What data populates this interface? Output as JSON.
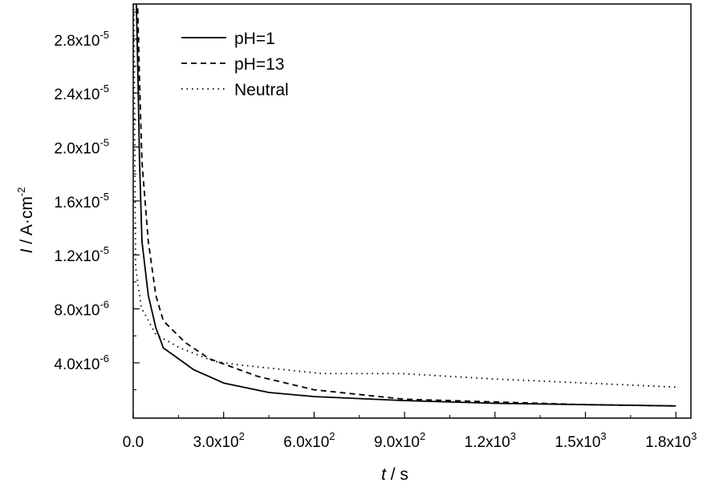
{
  "chart_data": {
    "type": "line",
    "title": "",
    "xlabel_italic": "t",
    "xlabel_rest": " / s",
    "ylabel_italic": "I",
    "ylabel_rest": " / A·cm",
    "ylabel_exp": "-2",
    "xlim": [
      0,
      1850
    ],
    "ylim": [
      -1e-07,
      3.06e-05
    ],
    "grid": false,
    "legend_position": "top-left",
    "x_ticks": [
      {
        "value": 0,
        "mant": "0.0",
        "exp": ""
      },
      {
        "value": 300,
        "mant": "3.0x10",
        "exp": "2"
      },
      {
        "value": 600,
        "mant": "6.0x10",
        "exp": "2"
      },
      {
        "value": 900,
        "mant": "9.0x10",
        "exp": "2"
      },
      {
        "value": 1200,
        "mant": "1.2x10",
        "exp": "3"
      },
      {
        "value": 1500,
        "mant": "1.5x10",
        "exp": "3"
      },
      {
        "value": 1800,
        "mant": "1.8x10",
        "exp": "3"
      }
    ],
    "y_ticks": [
      {
        "value": 4e-06,
        "mant": "4.0x10",
        "exp": "-6"
      },
      {
        "value": 8e-06,
        "mant": "8.0x10",
        "exp": "-6"
      },
      {
        "value": 1.2e-05,
        "mant": "1.2x10",
        "exp": "-5"
      },
      {
        "value": 1.6e-05,
        "mant": "1.6x10",
        "exp": "-5"
      },
      {
        "value": 2e-05,
        "mant": "2.0x10",
        "exp": "-5"
      },
      {
        "value": 2.4e-05,
        "mant": "2.4x10",
        "exp": "-5"
      },
      {
        "value": 2.8e-05,
        "mant": "2.8x10",
        "exp": "-5"
      }
    ],
    "series": [
      {
        "name": "pH=1",
        "style": "solid",
        "x": [
          10,
          16,
          21,
          29,
          50,
          75,
          100,
          150,
          200,
          300,
          450,
          600,
          900,
          1200,
          1500,
          1800
        ],
        "y": [
          3.1e-05,
          2.49e-05,
          1.89e-05,
          1.3e-05,
          9e-06,
          6.6e-06,
          5.1e-06,
          4.3e-06,
          3.5e-06,
          2.5e-06,
          1.8e-06,
          1.5e-06,
          1.2e-06,
          1e-06,
          9e-07,
          8e-07
        ]
      },
      {
        "name": "pH=13",
        "style": "dashed",
        "x": [
          14,
          21,
          29,
          50,
          75,
          100,
          173,
          253,
          412,
          600,
          900,
          1200,
          1500,
          1800
        ],
        "y": [
          3.1e-05,
          2.49e-05,
          1.89e-05,
          1.3e-05,
          9e-06,
          7.1e-06,
          5.5e-06,
          4.3e-06,
          3e-06,
          2e-06,
          1.3e-06,
          1.1e-06,
          9e-07,
          8e-07
        ]
      },
      {
        "name": "Neutral",
        "style": "dotted",
        "x": [
          2,
          5,
          8,
          27,
          75,
          155,
          270,
          350,
          625,
          890,
          1200,
          1500,
          1800
        ],
        "y": [
          3.1e-05,
          2e-05,
          1.11e-05,
          8.1e-06,
          6.1e-06,
          5.1e-06,
          4.1e-06,
          3.85e-06,
          3.2e-06,
          3.2e-06,
          2.8e-06,
          2.5e-06,
          2.2e-06
        ]
      }
    ]
  }
}
